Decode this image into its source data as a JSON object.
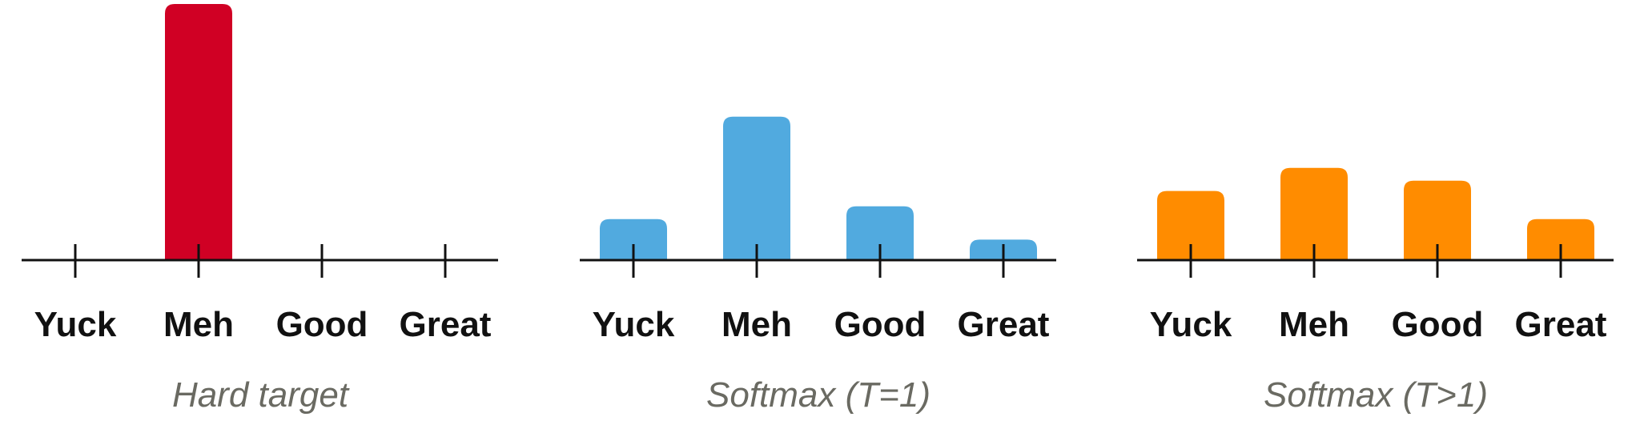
{
  "chart_data": [
    {
      "type": "bar",
      "categories": [
        "Yuck",
        "Meh",
        "Good",
        "Great"
      ],
      "values": [
        0,
        1.0,
        0,
        0
      ],
      "ylim": [
        0,
        1.0
      ],
      "color": "#d00024",
      "caption": "Hard target",
      "grid": false
    },
    {
      "type": "bar",
      "categories": [
        "Yuck",
        "Meh",
        "Good",
        "Great"
      ],
      "values": [
        0.16,
        0.56,
        0.21,
        0.08
      ],
      "ylim": [
        0,
        1.0
      ],
      "color": "#51aadf",
      "caption": "Softmax (T=1)",
      "grid": false
    },
    {
      "type": "bar",
      "categories": [
        "Yuck",
        "Meh",
        "Good",
        "Great"
      ],
      "values": [
        0.27,
        0.36,
        0.31,
        0.16
      ],
      "ylim": [
        0,
        1.0
      ],
      "color": "#ff8c00",
      "caption": "Softmax (T>1)",
      "grid": false
    }
  ]
}
